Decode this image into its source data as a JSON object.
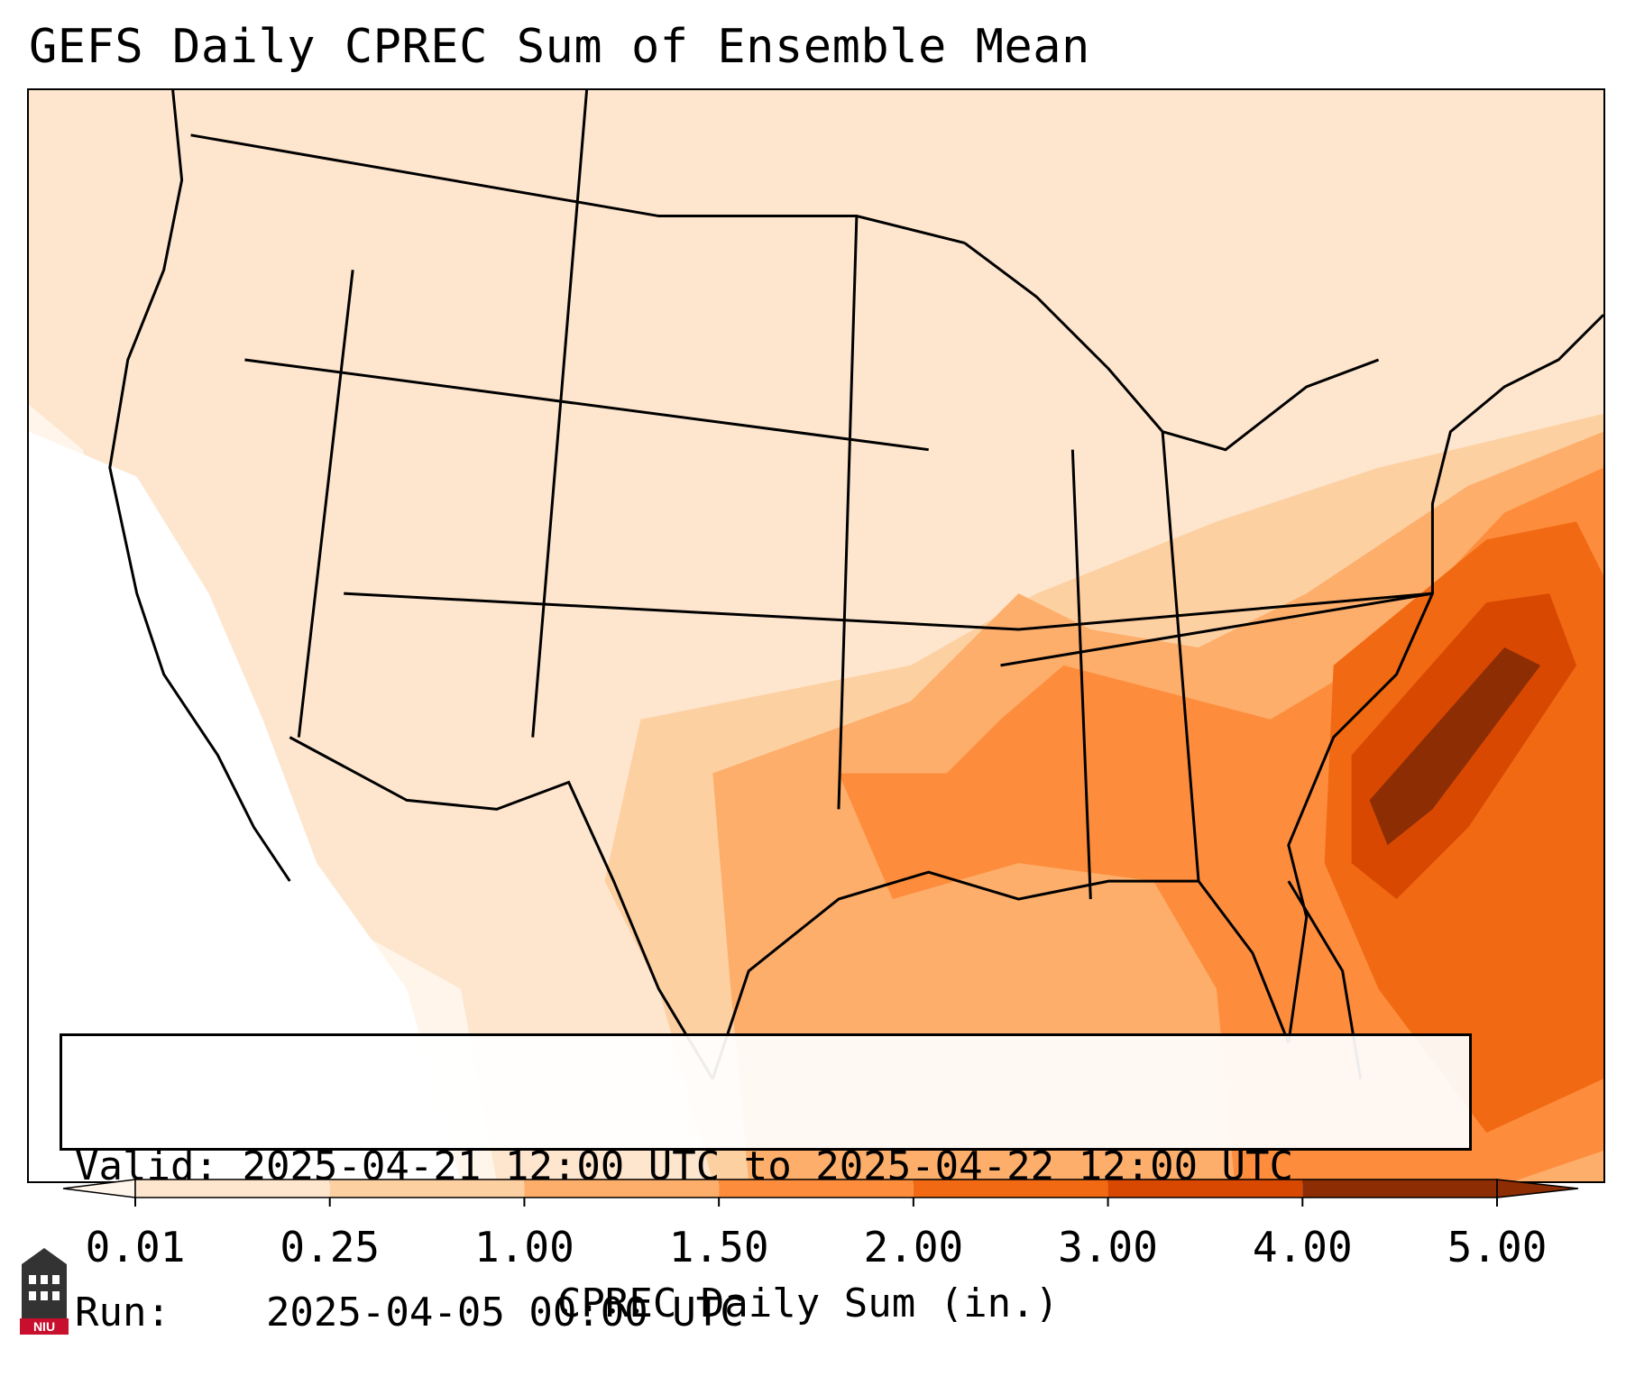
{
  "title": "GEFS Daily CPREC Sum of Ensemble Mean",
  "info": {
    "valid_label": "Valid:",
    "valid_value": "2025-04-21 12:00 UTC to 2025-04-22 12:00 UTC",
    "run_label": "Run:",
    "run_value": "2025-04-05 00:00 UTC"
  },
  "colorbar": {
    "label": "CPREC Daily Sum (in.)",
    "ticks": [
      "0.01",
      "0.25",
      "1.00",
      "1.50",
      "2.00",
      "3.00",
      "4.00",
      "5.00"
    ],
    "colors": [
      "#fff5eb",
      "#fee6ce",
      "#fdd0a2",
      "#fdae6b",
      "#fd8d3c",
      "#f16913",
      "#d94801",
      "#8c2d04"
    ],
    "extend": "both"
  },
  "map": {
    "region": "CONUS",
    "feature_label": "state boundaries",
    "max_precip_region_label": "offshore Atlantic band"
  },
  "logo": {
    "text": "NIU",
    "icon": "university-tower-icon"
  }
}
